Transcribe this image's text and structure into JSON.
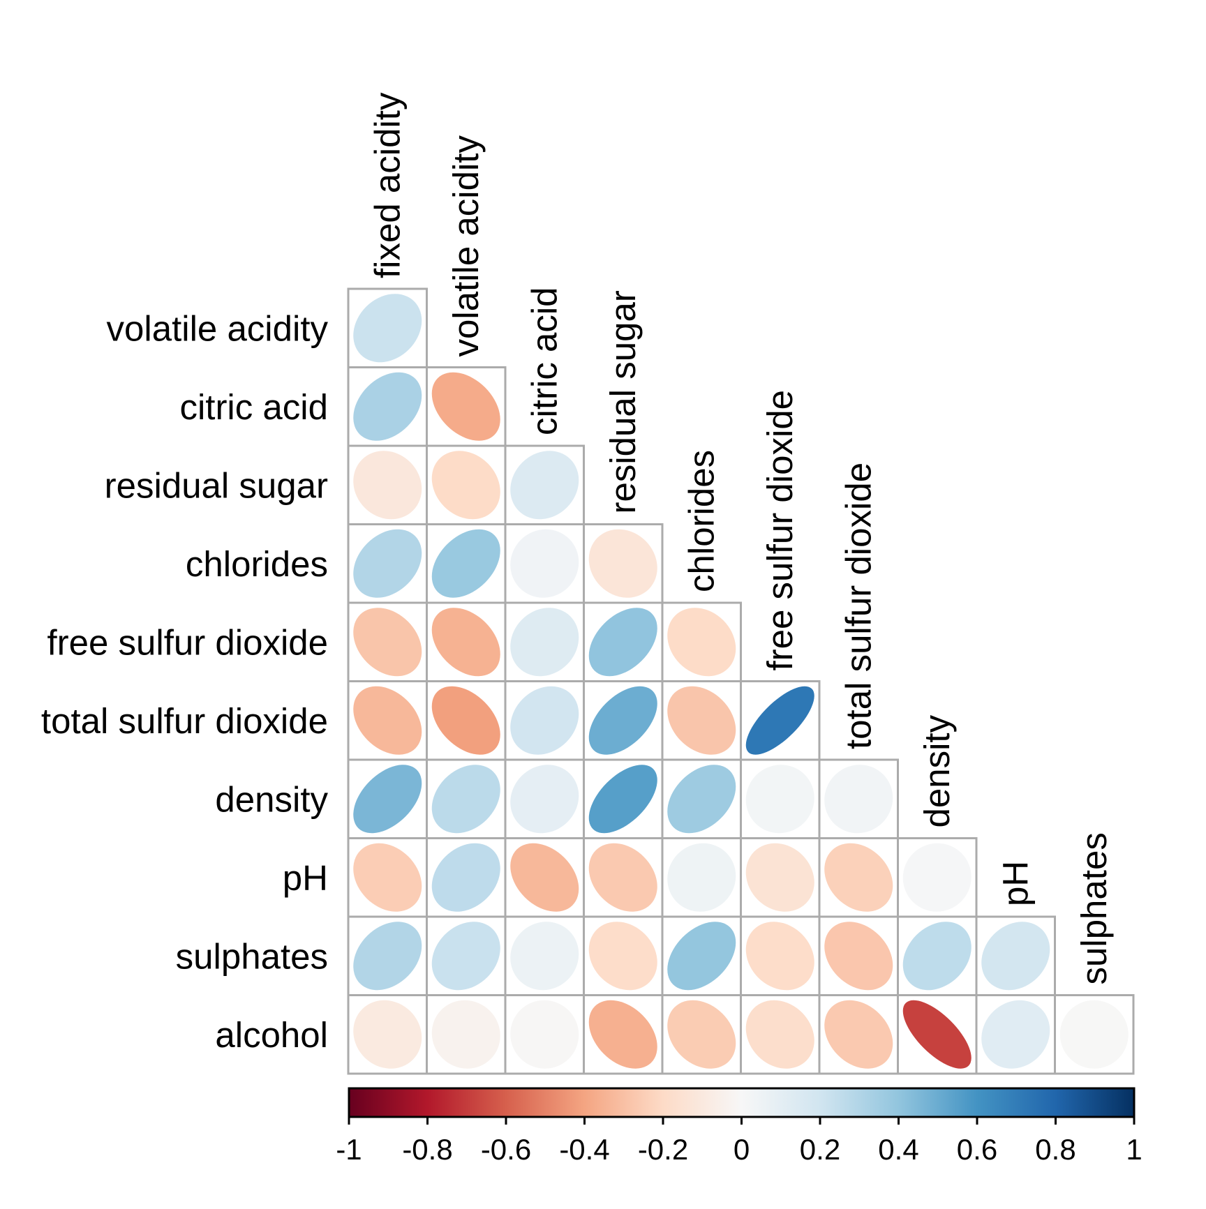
{
  "chart_data": {
    "type": "heatmap",
    "variant": "correlation-ellipse-matrix",
    "triangle": "lower",
    "diagonal_shown": false,
    "variables": [
      "fixed acidity",
      "volatile acidity",
      "citric acid",
      "residual sugar",
      "chlorides",
      "free sulfur dioxide",
      "total sulfur dioxide",
      "density",
      "pH",
      "sulphates",
      "alcohol"
    ],
    "col_labels": [
      "fixed acidity",
      "volatile acidity",
      "citric acid",
      "residual sugar",
      "chlorides",
      "free sulfur dioxide",
      "total sulfur dioxide",
      "density",
      "pH",
      "sulphates"
    ],
    "row_labels": [
      "volatile acidity",
      "citric acid",
      "residual sugar",
      "chlorides",
      "free sulfur dioxide",
      "total sulfur dioxide",
      "density",
      "pH",
      "sulphates",
      "alcohol"
    ],
    "rows": [
      {
        "label": "volatile acidity",
        "values": [
          0.219
        ]
      },
      {
        "label": "citric acid",
        "values": [
          0.324,
          -0.378
        ]
      },
      {
        "label": "residual sugar",
        "values": [
          -0.112,
          -0.196,
          0.142
        ]
      },
      {
        "label": "chlorides",
        "values": [
          0.298,
          0.377,
          0.039,
          -0.129
        ]
      },
      {
        "label": "free sulfur dioxide",
        "values": [
          -0.283,
          -0.353,
          0.133,
          0.403,
          -0.195
        ]
      },
      {
        "label": "total sulfur dioxide",
        "values": [
          -0.329,
          -0.414,
          0.195,
          0.495,
          -0.28,
          0.721
        ]
      },
      {
        "label": "density",
        "values": [
          0.459,
          0.271,
          0.096,
          0.552,
          0.363,
          0.026,
          0.032
        ]
      },
      {
        "label": "pH",
        "values": [
          -0.253,
          0.261,
          -0.33,
          -0.267,
          0.045,
          -0.146,
          -0.238,
          0.012
        ]
      },
      {
        "label": "sulphates",
        "values": [
          0.299,
          0.226,
          0.056,
          -0.186,
          0.395,
          -0.188,
          -0.276,
          0.259,
          0.192
        ]
      },
      {
        "label": "alcohol",
        "values": [
          -0.095,
          -0.038,
          -0.01,
          -0.359,
          -0.257,
          -0.18,
          -0.266,
          -0.687,
          0.121,
          -0.003
        ]
      }
    ],
    "colorbar": {
      "min": -1,
      "max": 1,
      "orientation": "horizontal",
      "position": "bottom",
      "ticks": [
        -1,
        -0.8,
        -0.6,
        -0.4,
        -0.2,
        0,
        0.2,
        0.4,
        0.6,
        0.8,
        1
      ],
      "tick_labels": [
        "-1",
        "-0.8",
        "-0.6",
        "-0.4",
        "-0.2",
        "0",
        "0.2",
        "0.4",
        "0.6",
        "0.8",
        "1"
      ]
    },
    "palette_rdbu": [
      "#67001F",
      "#B2182B",
      "#D6604D",
      "#F4A582",
      "#FDDBC7",
      "#F7F7F7",
      "#D1E5F0",
      "#92C5DE",
      "#4393C3",
      "#2166AC",
      "#053061"
    ],
    "grid_color": "#ABABAB",
    "colorbar_border_color": "#000000",
    "text_color": "#000000",
    "background_color": "#FFFFFF"
  }
}
